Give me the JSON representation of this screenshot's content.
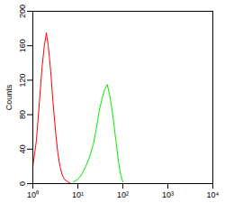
{
  "chart_data": {
    "type": "line",
    "log": "x",
    "y_label": "Counts",
    "x": [
      1.0,
      1.2,
      1.4,
      1.6,
      1.8,
      2.0,
      2.2,
      2.5,
      2.8,
      3.2,
      3.6,
      4.0,
      4.5,
      5.0,
      6.0,
      7.0,
      8,
      10,
      12,
      15,
      18,
      22,
      26,
      30,
      35,
      40,
      45,
      50,
      56,
      63,
      70,
      80,
      90,
      100
    ],
    "series": [
      {
        "color": "#ff0000",
        "values": [
          20,
          50,
          95,
          135,
          160,
          175,
          160,
          130,
          95,
          60,
          35,
          20,
          10,
          5,
          2,
          0,
          null,
          null,
          null,
          null,
          null,
          null,
          null,
          null,
          null,
          null,
          null,
          null,
          null,
          null,
          null,
          null,
          null,
          null
        ]
      },
      {
        "color": "#00ee00",
        "values": [
          null,
          null,
          null,
          null,
          null,
          null,
          null,
          null,
          null,
          null,
          null,
          null,
          null,
          null,
          null,
          null,
          2,
          5,
          10,
          20,
          30,
          45,
          65,
          85,
          100,
          110,
          115,
          105,
          90,
          70,
          50,
          25,
          10,
          2
        ]
      }
    ],
    "xlim": [
      1,
      10000
    ],
    "xticks": [
      {
        "value": 1,
        "label": "10⁰"
      },
      {
        "value": 10,
        "label": "10¹"
      },
      {
        "value": 100,
        "label": "10²"
      },
      {
        "value": 1000,
        "label": "10³"
      },
      {
        "value": 10000,
        "label": "10⁴"
      }
    ],
    "ylim": [
      0,
      200
    ],
    "yticks": [
      0,
      40,
      80,
      120,
      160,
      200
    ]
  }
}
